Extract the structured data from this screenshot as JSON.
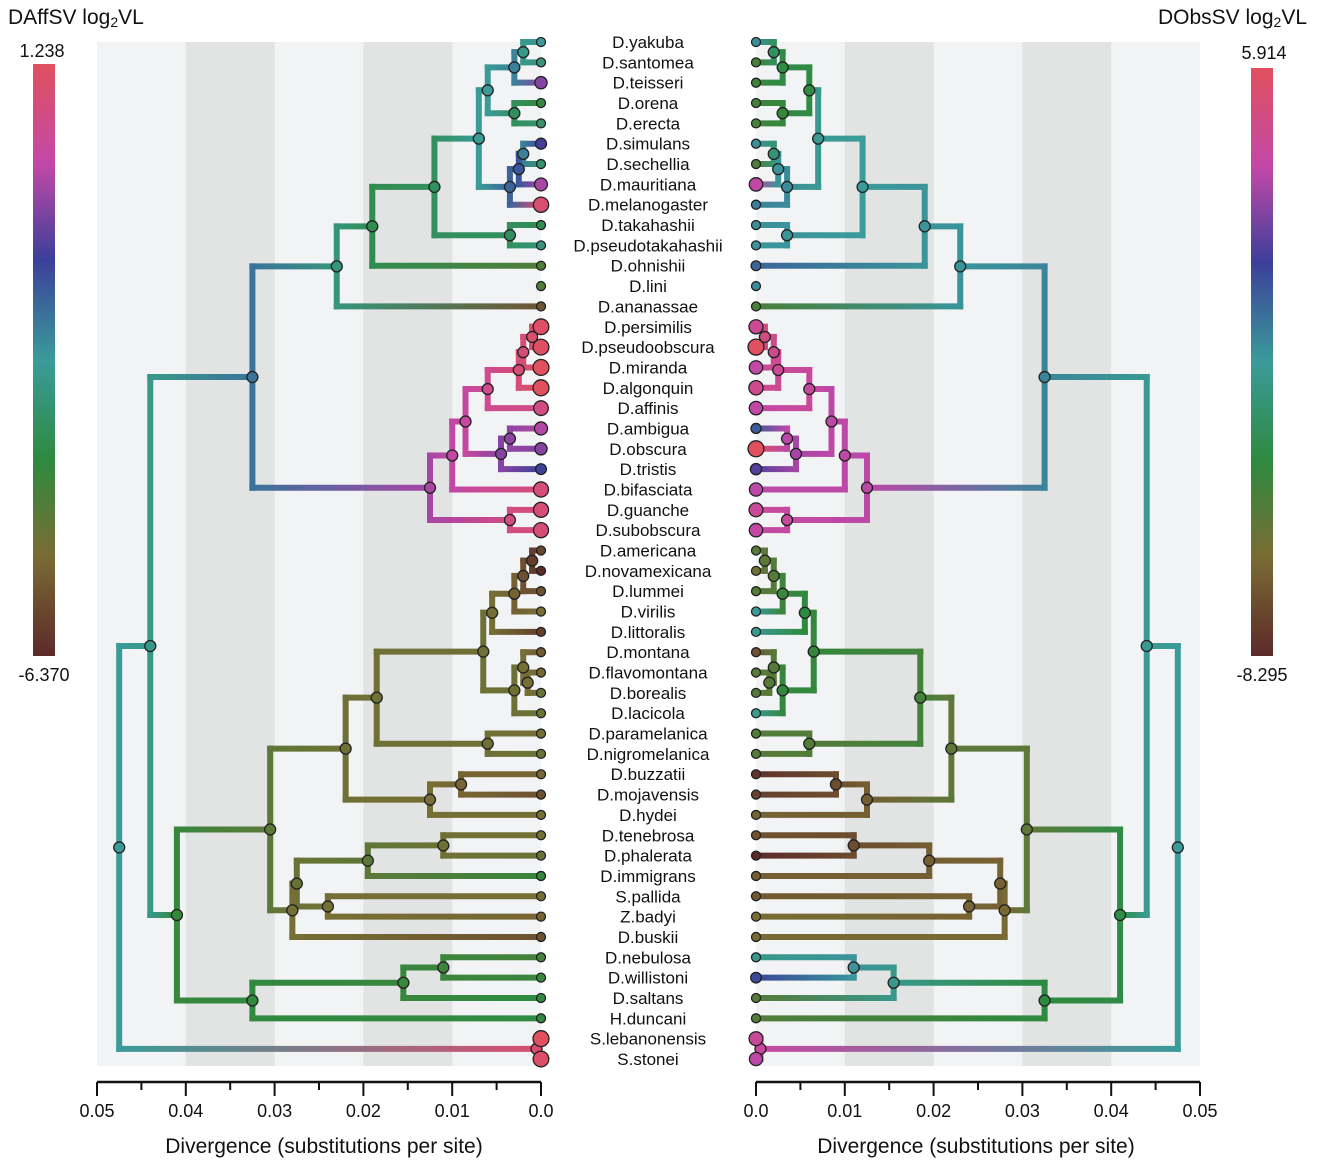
{
  "colors": {
    "band_light": "#f2f3f4",
    "band_dark": "#e2e3e3",
    "highlight": "#ee1c24",
    "text": "#111111"
  },
  "colorbars": {
    "left": {
      "title": "DAffSV log",
      "title_sub": "2",
      "title_end": "VL",
      "max": "1.238",
      "min": "-6.370"
    },
    "right": {
      "title": "DObsSV log",
      "title_sub": "2",
      "title_end": "VL",
      "max": "5.914",
      "min": "-8.295"
    }
  },
  "axes": {
    "left": {
      "ticks": [
        "0.05",
        "0.04",
        "0.03",
        "0.02",
        "0.01",
        "0.0"
      ],
      "title": "Divergence (substitutions per site)"
    },
    "right": {
      "ticks": [
        "0.0",
        "0.01",
        "0.02",
        "0.03",
        "0.04",
        "0.05"
      ],
      "title": "Divergence (substitutions per site)"
    }
  },
  "chart_data": {
    "type": "phylogenetic-tree",
    "taxa": [
      {
        "name": "D.yakuba"
      },
      {
        "name": "D.santomea"
      },
      {
        "name": "D.teisseri"
      },
      {
        "name": "D.orena"
      },
      {
        "name": "D.erecta"
      },
      {
        "name": "D.simulans"
      },
      {
        "name": "D.sechellia"
      },
      {
        "name": "D.mauritiana"
      },
      {
        "name": "D.melanogaster"
      },
      {
        "name": "D.takahashii"
      },
      {
        "name": "D.pseudotakahashii"
      },
      {
        "name": "D.ohnishii"
      },
      {
        "name": "D.lini"
      },
      {
        "name": "D.ananassae"
      },
      {
        "name": "D.persimilis"
      },
      {
        "name": "D.pseudoobscura"
      },
      {
        "name": "D.miranda"
      },
      {
        "name": "D.algonquin"
      },
      {
        "name": "D.affinis",
        "highlight": true
      },
      {
        "name": "D.ambigua"
      },
      {
        "name": "D.obscura",
        "highlight": true
      },
      {
        "name": "D.tristis"
      },
      {
        "name": "D.bifasciata"
      },
      {
        "name": "D.guanche"
      },
      {
        "name": "D.subobscura"
      },
      {
        "name": "D.americana"
      },
      {
        "name": "D.novamexicana"
      },
      {
        "name": "D.lummei"
      },
      {
        "name": "D.virilis"
      },
      {
        "name": "D.littoralis"
      },
      {
        "name": "D.montana"
      },
      {
        "name": "D.flavomontana"
      },
      {
        "name": "D.borealis"
      },
      {
        "name": "D.lacicola"
      },
      {
        "name": "D.paramelanica"
      },
      {
        "name": "D.nigromelanica"
      },
      {
        "name": "D.buzzatii"
      },
      {
        "name": "D.mojavensis"
      },
      {
        "name": "D.hydei"
      },
      {
        "name": "D.tenebrosa"
      },
      {
        "name": "D.phalerata"
      },
      {
        "name": "D.immigrans"
      },
      {
        "name": "S.pallida"
      },
      {
        "name": "Z.badyi"
      },
      {
        "name": "D.buskii"
      },
      {
        "name": "D.nebulosa"
      },
      {
        "name": "D.willistoni"
      },
      {
        "name": "D.saltans"
      },
      {
        "name": "H.duncani"
      },
      {
        "name": "S.lebanonensis"
      },
      {
        "name": "S.stonei"
      }
    ],
    "tree": [
      {
        "id": "n1",
        "d": 0.002,
        "c": [
          "t0",
          "t1"
        ]
      },
      {
        "id": "n2",
        "d": 0.003,
        "c": [
          "n1",
          "t2"
        ]
      },
      {
        "id": "n3",
        "d": 0.003,
        "c": [
          "t3",
          "t4"
        ]
      },
      {
        "id": "n4",
        "d": 0.006,
        "c": [
          "n2",
          "n3"
        ]
      },
      {
        "id": "n5",
        "d": 0.002,
        "c": [
          "t5",
          "t6"
        ]
      },
      {
        "id": "n6",
        "d": 0.0025,
        "c": [
          "n5",
          "t7"
        ]
      },
      {
        "id": "n7",
        "d": 0.0035,
        "c": [
          "n6",
          "t8"
        ]
      },
      {
        "id": "n8",
        "d": 0.007,
        "c": [
          "n4",
          "n7"
        ]
      },
      {
        "id": "n9",
        "d": 0.0035,
        "c": [
          "t9",
          "t10"
        ]
      },
      {
        "id": "n10",
        "d": 0.012,
        "c": [
          "n8",
          "n9"
        ]
      },
      {
        "id": "n11",
        "d": 0.019,
        "c": [
          "n10",
          "t11"
        ]
      },
      {
        "id": "n12",
        "d": 0.023,
        "c": [
          "n11",
          "t13"
        ]
      },
      {
        "id": "n13",
        "d": 0.001,
        "c": [
          "t14",
          "t15"
        ]
      },
      {
        "id": "n14",
        "d": 0.002,
        "c": [
          "n13",
          "t16"
        ]
      },
      {
        "id": "n15",
        "d": 0.0025,
        "c": [
          "n14",
          "t17"
        ]
      },
      {
        "id": "n16",
        "d": 0.006,
        "c": [
          "n15",
          "t18"
        ]
      },
      {
        "id": "n17",
        "d": 0.0035,
        "c": [
          "t19",
          "t20"
        ]
      },
      {
        "id": "n18",
        "d": 0.0045,
        "c": [
          "n17",
          "t21"
        ]
      },
      {
        "id": "n19",
        "d": 0.0085,
        "c": [
          "n16",
          "n18"
        ]
      },
      {
        "id": "n20",
        "d": 0.01,
        "c": [
          "n19",
          "t22"
        ]
      },
      {
        "id": "n21",
        "d": 0.0035,
        "c": [
          "t23",
          "t24"
        ]
      },
      {
        "id": "n22",
        "d": 0.0125,
        "c": [
          "n20",
          "n21"
        ]
      },
      {
        "id": "n23",
        "d": 0.0325,
        "c": [
          "n12",
          "n22"
        ]
      },
      {
        "id": "n24",
        "d": 0.001,
        "c": [
          "t25",
          "t26"
        ]
      },
      {
        "id": "n25",
        "d": 0.002,
        "c": [
          "n24",
          "t27"
        ]
      },
      {
        "id": "n26",
        "d": 0.003,
        "c": [
          "n25",
          "t28"
        ]
      },
      {
        "id": "n27",
        "d": 0.0055,
        "c": [
          "n26",
          "t29"
        ]
      },
      {
        "id": "n28",
        "d": 0.0015,
        "c": [
          "t31",
          "t32"
        ]
      },
      {
        "id": "n29",
        "d": 0.002,
        "c": [
          "n28",
          "t30"
        ]
      },
      {
        "id": "n30",
        "d": 0.003,
        "c": [
          "n29",
          "t33"
        ]
      },
      {
        "id": "n31",
        "d": 0.0065,
        "c": [
          "n27",
          "n30"
        ]
      },
      {
        "id": "n32",
        "d": 0.006,
        "c": [
          "t34",
          "t35"
        ]
      },
      {
        "id": "n33",
        "d": 0.0185,
        "c": [
          "n31",
          "n32"
        ]
      },
      {
        "id": "n34",
        "d": 0.009,
        "c": [
          "t36",
          "t37"
        ]
      },
      {
        "id": "n35",
        "d": 0.0125,
        "c": [
          "n34",
          "t38"
        ]
      },
      {
        "id": "n36",
        "d": 0.022,
        "c": [
          "n33",
          "n35"
        ]
      },
      {
        "id": "n37",
        "d": 0.011,
        "c": [
          "t39",
          "t40"
        ]
      },
      {
        "id": "n38",
        "d": 0.0195,
        "c": [
          "n37",
          "t41"
        ]
      },
      {
        "id": "n39",
        "d": 0.024,
        "c": [
          "t42",
          "t43"
        ]
      },
      {
        "id": "n40",
        "d": 0.0275,
        "c": [
          "n38",
          "n39"
        ]
      },
      {
        "id": "n41",
        "d": 0.028,
        "c": [
          "n40",
          "t44"
        ]
      },
      {
        "id": "n42",
        "d": 0.0305,
        "c": [
          "n36",
          "n41"
        ]
      },
      {
        "id": "n43",
        "d": 0.011,
        "c": [
          "t45",
          "t46"
        ]
      },
      {
        "id": "n44",
        "d": 0.0155,
        "c": [
          "n43",
          "t47"
        ]
      },
      {
        "id": "n45",
        "d": 0.0325,
        "c": [
          "n44",
          "t48"
        ]
      },
      {
        "id": "n46",
        "d": 0.041,
        "c": [
          "n42",
          "n45"
        ]
      },
      {
        "id": "n47",
        "d": 0.044,
        "c": [
          "n23",
          "n46"
        ]
      },
      {
        "id": "n48",
        "d": 0.0005,
        "c": [
          "t49",
          "t50"
        ]
      },
      {
        "id": "n49",
        "d": 0.0475,
        "c": [
          "n47",
          "n48"
        ]
      }
    ],
    "daffsv_log2vl": {
      "t0": -2.6,
      "t1": -3.0,
      "t2": -0.6,
      "t3": -4.0,
      "t4": -3.2,
      "t5": -1.2,
      "t6": -3.2,
      "t7": -0.3,
      "t8": 0.9,
      "t9": -3.6,
      "t10": -3.0,
      "t11": -4.4,
      "t12": -4.4,
      "t13": -5.5,
      "t14": 1.1,
      "t15": 1.15,
      "t16": 1.238,
      "t17": 1.238,
      "t18": 0.6,
      "t19": -0.2,
      "t20": -0.6,
      "t21": -1.3,
      "t22": 0.8,
      "t23": 0.8,
      "t24": 0.8,
      "t25": -5.8,
      "t26": -6.37,
      "t27": -5.6,
      "t28": -5.0,
      "t29": -6.0,
      "t30": -5.4,
      "t31": -5.2,
      "t32": -4.8,
      "t33": -4.8,
      "t34": -5.0,
      "t35": -4.8,
      "t36": -5.2,
      "t37": -5.6,
      "t38": -5.0,
      "t39": -5.0,
      "t40": -4.8,
      "t41": -4.0,
      "t42": -5.0,
      "t43": -5.2,
      "t44": -5.6,
      "t45": -4.2,
      "t46": -4.0,
      "t47": -3.8,
      "t48": -3.8,
      "t49": 1.238,
      "t50": 1.1,
      "n1": -2.8,
      "n2": -2.2,
      "n3": -3.4,
      "n4": -2.6,
      "n5": -2.2,
      "n6": -1.6,
      "n7": -1.8,
      "n8": -2.6,
      "n9": -3.4,
      "n10": -3.4,
      "n11": -3.6,
      "n12": -3.0,
      "n13": 1.0,
      "n14": 0.8,
      "n15": 0.8,
      "n16": 0.4,
      "n17": -0.5,
      "n18": -0.6,
      "n19": 0.1,
      "n20": 0.0,
      "n21": 0.6,
      "n22": -0.3,
      "n23": -2.0,
      "n24": -6.0,
      "n25": -5.6,
      "n26": -5.3,
      "n27": -5.0,
      "n28": -5.0,
      "n29": -5.0,
      "n30": -4.9,
      "n31": -4.9,
      "n32": -4.9,
      "n33": -4.9,
      "n34": -5.2,
      "n35": -5.0,
      "n36": -4.9,
      "n37": -4.9,
      "n38": -4.6,
      "n39": -5.0,
      "n40": -4.8,
      "n41": -5.0,
      "n42": -4.6,
      "n43": -4.1,
      "n44": -4.0,
      "n45": -3.9,
      "n46": -4.0,
      "n47": -2.8,
      "n48": 0.9,
      "n49": -2.6
    },
    "dobssv_log2vl": {
      "t0": -0.9,
      "t1": -4.2,
      "t2": -4.0,
      "t3": -4.3,
      "t4": -4.2,
      "t5": -0.9,
      "t6": -4.6,
      "t7": 3.6,
      "t8": -0.4,
      "t9": -0.9,
      "t10": -1.0,
      "t11": 0.2,
      "t12": -0.8,
      "t13": -4.4,
      "t14": 4.2,
      "t15": 5.914,
      "t16": 3.6,
      "t17": 4.4,
      "t18": 3.6,
      "t19": 0.5,
      "t20": 5.914,
      "t21": 1.6,
      "t22": 3.4,
      "t23": 4.0,
      "t24": 3.6,
      "t25": -4.8,
      "t26": -5.6,
      "t27": -4.8,
      "t28": -1.2,
      "t29": -1.4,
      "t30": -6.8,
      "t31": -4.8,
      "t32": -4.8,
      "t33": -1.4,
      "t34": -4.6,
      "t35": -4.8,
      "t36": -8.0,
      "t37": -7.4,
      "t38": -6.2,
      "t39": -6.8,
      "t40": -8.295,
      "t41": -6.4,
      "t42": -6.6,
      "t43": -5.8,
      "t44": -6.0,
      "t45": -1.6,
      "t46": 1.0,
      "t47": -4.8,
      "t48": -4.6,
      "t49": 4.0,
      "t50": 3.4,
      "n1": -2.8,
      "n2": -3.4,
      "n3": -3.8,
      "n4": -3.4,
      "n5": -2.2,
      "n6": -1.0,
      "n7": -0.8,
      "n8": -1.4,
      "n9": -1.0,
      "n10": -1.2,
      "n11": -1.0,
      "n12": -1.0,
      "n13": 4.8,
      "n14": 4.4,
      "n15": 4.2,
      "n16": 3.9,
      "n17": 3.4,
      "n18": 3.0,
      "n19": 3.4,
      "n20": 3.4,
      "n21": 3.8,
      "n22": 3.4,
      "n23": -0.6,
      "n24": -5.0,
      "n25": -4.7,
      "n26": -4.0,
      "n27": -3.6,
      "n28": -4.8,
      "n29": -4.8,
      "n30": -3.8,
      "n31": -3.8,
      "n32": -4.7,
      "n33": -4.2,
      "n34": -7.0,
      "n35": -6.4,
      "n36": -5.0,
      "n37": -7.0,
      "n38": -6.4,
      "n39": -6.2,
      "n40": -6.2,
      "n41": -6.0,
      "n42": -5.0,
      "n43": -1.0,
      "n44": -1.6,
      "n45": -3.6,
      "n46": -3.4,
      "n47": -1.4,
      "n48": 3.8,
      "n49": -1.2
    }
  }
}
